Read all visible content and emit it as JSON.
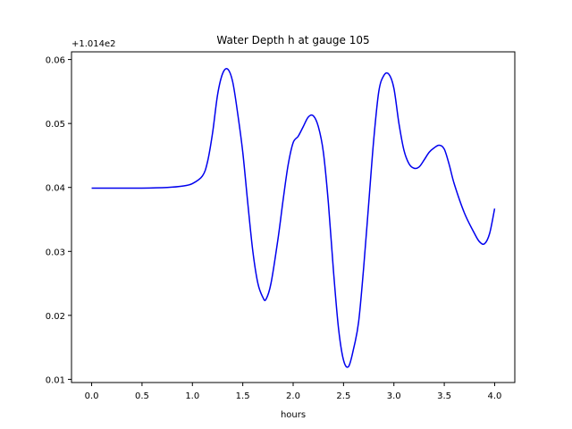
{
  "chart_data": {
    "type": "line",
    "title": "Water Depth h at gauge 105",
    "xlabel": "hours",
    "ylabel": "",
    "y_offset_label": "+1.014e2",
    "y_offset": 101.4,
    "xlim": [
      -0.2,
      4.2
    ],
    "ylim": [
      0.0095,
      0.0612
    ],
    "x_ticks": [
      0.0,
      0.5,
      1.0,
      1.5,
      2.0,
      2.5,
      3.0,
      3.5,
      4.0
    ],
    "x_tick_labels": [
      "0.0",
      "0.5",
      "1.0",
      "1.5",
      "2.0",
      "2.5",
      "3.0",
      "3.5",
      "4.0"
    ],
    "y_ticks": [
      0.01,
      0.02,
      0.03,
      0.04,
      0.05,
      0.06
    ],
    "y_tick_labels": [
      "0.01",
      "0.02",
      "0.03",
      "0.04",
      "0.05",
      "0.06"
    ],
    "grid": false,
    "legend": "none",
    "colors": {
      "line": "#0000ee",
      "axes": "#000000",
      "background": "#ffffff"
    },
    "series": [
      {
        "x": [
          0.0,
          0.25,
          0.5,
          0.75,
          0.9,
          1.0,
          1.1,
          1.15,
          1.2,
          1.25,
          1.3,
          1.35,
          1.4,
          1.45,
          1.5,
          1.55,
          1.6,
          1.65,
          1.7,
          1.73,
          1.78,
          1.85,
          1.9,
          1.95,
          2.0,
          2.05,
          2.1,
          2.15,
          2.2,
          2.25,
          2.3,
          2.35,
          2.4,
          2.45,
          2.5,
          2.55,
          2.6,
          2.65,
          2.7,
          2.75,
          2.8,
          2.85,
          2.9,
          2.95,
          3.0,
          3.05,
          3.1,
          3.15,
          3.2,
          3.25,
          3.3,
          3.35,
          3.4,
          3.45,
          3.5,
          3.55,
          3.6,
          3.7,
          3.8,
          3.85,
          3.9,
          3.95,
          4.0
        ],
        "y": [
          0.0399,
          0.0399,
          0.0399,
          0.04,
          0.0402,
          0.0406,
          0.0418,
          0.044,
          0.0485,
          0.0545,
          0.0578,
          0.0585,
          0.0565,
          0.0515,
          0.0455,
          0.0375,
          0.03,
          0.025,
          0.0228,
          0.0225,
          0.025,
          0.032,
          0.038,
          0.0435,
          0.047,
          0.048,
          0.0495,
          0.051,
          0.0512,
          0.0495,
          0.0455,
          0.0375,
          0.027,
          0.018,
          0.013,
          0.012,
          0.0148,
          0.019,
          0.0275,
          0.0375,
          0.0475,
          0.055,
          0.0575,
          0.0577,
          0.0555,
          0.05,
          0.0458,
          0.0437,
          0.043,
          0.0432,
          0.0443,
          0.0455,
          0.0462,
          0.0466,
          0.046,
          0.0435,
          0.0405,
          0.036,
          0.0328,
          0.0315,
          0.0312,
          0.0328,
          0.0367
        ]
      }
    ]
  }
}
